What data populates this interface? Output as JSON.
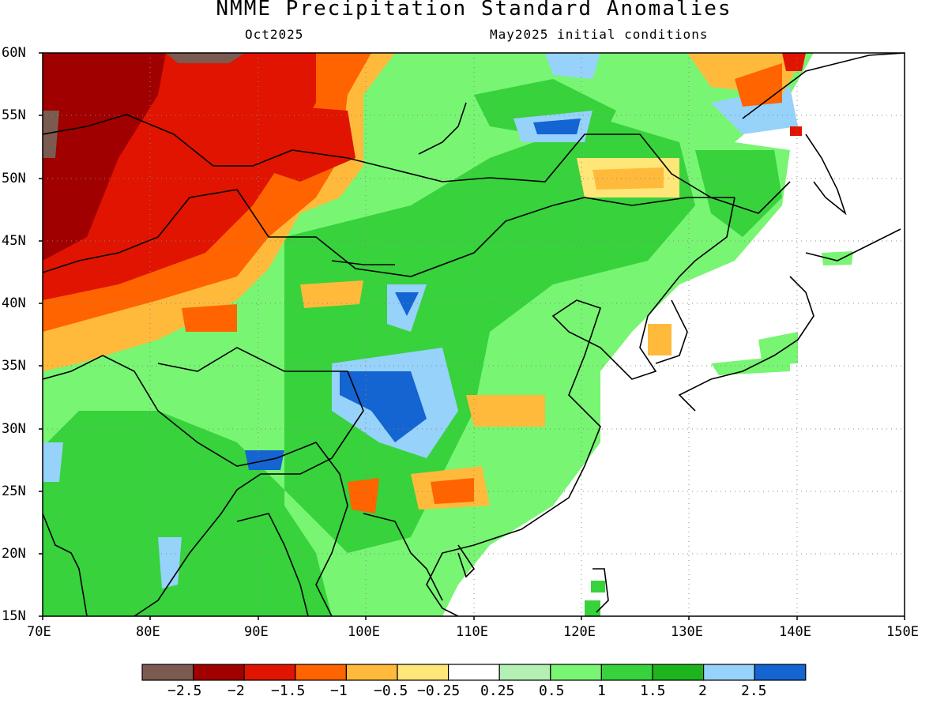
{
  "title": "NMME Precipitation Standard Anomalies",
  "subtitle_left": "Oct2025",
  "subtitle_right": "May2025 initial conditions",
  "axes": {
    "lat_labels": [
      "60N",
      "55N",
      "50N",
      "45N",
      "40N",
      "35N",
      "30N",
      "25N",
      "20N",
      "15N"
    ],
    "lon_labels": [
      "70E",
      "80E",
      "90E",
      "100E",
      "110E",
      "120E",
      "130E",
      "140E",
      "150E"
    ],
    "lat_range": [
      15,
      60
    ],
    "lon_range": [
      70,
      150
    ],
    "grid": "dotted"
  },
  "colorbar": {
    "colors": [
      "#7b5a50",
      "#a00000",
      "#e01400",
      "#ff6400",
      "#ffba3c",
      "#ffe678",
      "#ffffff",
      "#b4f0b4",
      "#78f573",
      "#37d23c",
      "#1eb41e",
      "#96d2fa",
      "#1464d2"
    ],
    "labels": [
      "−2.5",
      "−2",
      "−1.5",
      "−1",
      "−0.5",
      "−0.25",
      "0.25",
      "0.5",
      "1",
      "1.5",
      "2",
      "2.5"
    ]
  },
  "regions": {
    "dry_west": "Kazakhstan / W. Siberia / Xinjiang strongly negative (−1.5 to −2.5)",
    "wet_tibet": "Tibetan Plateau and SW China positive (1 to 2.5)",
    "wet_mongolia": "Mongolia / NE China positive (0.5 to 2)",
    "wet_south_asia": "India / Indochina positive (0.5 to 2)"
  }
}
